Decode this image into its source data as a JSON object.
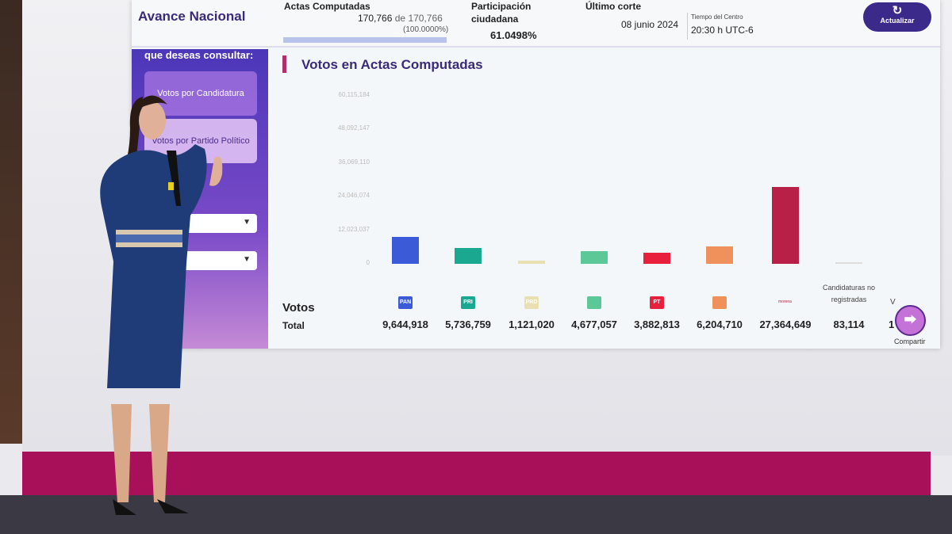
{
  "header": {
    "title": "Avance Nacional",
    "actas_label": "Actas Computadas",
    "actas_count": "170,766",
    "actas_de": "de",
    "actas_total": "170,766",
    "actas_pct": "(100.0000%)",
    "actas_progress": 100,
    "participacion_label1": "Participación",
    "participacion_label2": "ciudadana",
    "participacion_value": "61.0498%",
    "corte_label": "Último corte",
    "corte_date": "08 junio 2024",
    "tiempo_label": "Tiempo del Centro",
    "tiempo_value": "20:30 h UTC-6",
    "refresh_label": "Actualizar"
  },
  "left_panel": {
    "prompt": "que deseas consultar:",
    "options": [
      "Votos por Candidatura",
      "Votos por Partido Político"
    ]
  },
  "chart_data": {
    "type": "bar",
    "title": "Votos en Actas Computadas",
    "yticks": [
      "0",
      "12,023,037",
      "24,046,074",
      "36,069,110",
      "48,092,147",
      "60,115,184"
    ],
    "ylim": [
      0,
      60115184
    ],
    "row_label1": "Votos",
    "row_label2": "Total",
    "categories": [
      "PAN",
      "PRI",
      "PRD",
      "PVEM",
      "PT",
      "MC",
      "morena",
      "Candidaturas no registradas",
      "Votos nulos"
    ],
    "category_labels": [
      "PAN",
      "PRI",
      "PRD",
      "",
      "PT",
      "",
      "morena",
      "Candidaturas no registradas",
      "V"
    ],
    "values": [
      9644918,
      5736759,
      1121020,
      4677057,
      3882813,
      6204710,
      27364649,
      83114,
      null
    ],
    "value_labels": [
      "9,644,918",
      "5,736,759",
      "1,121,020",
      "4,677,057",
      "3,882,813",
      "6,204,710",
      "27,364,649",
      "83,114",
      "1"
    ],
    "colors": [
      "#3a5ad8",
      "#1aa890",
      "#e8e0b0",
      "#5cc898",
      "#e8203c",
      "#f0905a",
      "#b82048",
      "#ddd",
      "#ddd"
    ]
  },
  "share_label": "Compartir"
}
